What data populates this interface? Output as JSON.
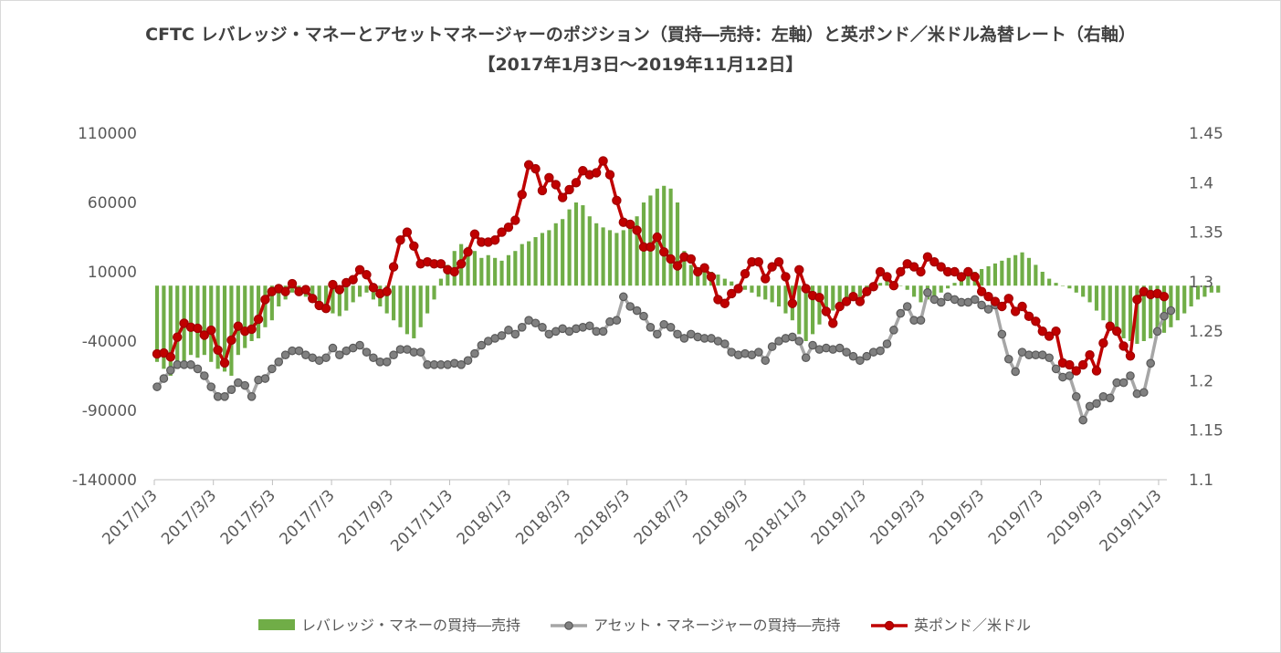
{
  "chart_data": {
    "type": "bar+line",
    "title": "CFTC レバレッジ・マネーとアセットマネージャーのポジション（買持―売持：左軸）と英ポンド／米ドル為替レート（右軸）",
    "subtitle": "【2017年1月3日～2019年11月12日】",
    "y_left": {
      "range": [
        -140000,
        110000
      ],
      "ticks": [
        "110000",
        "60000",
        "10000",
        "-40000",
        "-90000",
        "-140000"
      ]
    },
    "y_right": {
      "range": [
        1.1,
        1.45
      ],
      "ticks": [
        "1.45",
        "1.4",
        "1.35",
        "1.3",
        "1.25",
        "1.2",
        "1.15",
        "1.1"
      ]
    },
    "x_ticks": [
      "2017/1/3",
      "2017/3/3",
      "2017/5/3",
      "2017/7/3",
      "2017/9/3",
      "2017/11/3",
      "2018/1/3",
      "2018/3/3",
      "2018/5/3",
      "2018/7/3",
      "2018/9/3",
      "2018/11/3",
      "2019/1/3",
      "2019/3/3",
      "2019/5/3",
      "2019/7/3",
      "2019/9/3",
      "2019/11/3"
    ],
    "grid": false,
    "legend_position": "bottom",
    "series": [
      {
        "name": "レバレッジ・マネーの買持―売持",
        "type": "bar",
        "axis": "left",
        "color": "#70ad47",
        "values": [
          -55000,
          -60000,
          -65000,
          -60000,
          -55000,
          -50000,
          -52000,
          -50000,
          -55000,
          -60000,
          -62000,
          -65000,
          -50000,
          -45000,
          -40000,
          -38000,
          -30000,
          -25000,
          -15000,
          -10000,
          -5000,
          -5000,
          -8000,
          -10000,
          -12000,
          -15000,
          -20000,
          -22000,
          -18000,
          -12000,
          -8000,
          -5000,
          -10000,
          -15000,
          -20000,
          -25000,
          -30000,
          -35000,
          -38000,
          -30000,
          -20000,
          -10000,
          5000,
          15000,
          25000,
          30000,
          28000,
          25000,
          20000,
          22000,
          20000,
          18000,
          22000,
          25000,
          30000,
          32000,
          35000,
          38000,
          40000,
          45000,
          48000,
          55000,
          60000,
          58000,
          50000,
          45000,
          42000,
          40000,
          38000,
          40000,
          45000,
          50000,
          60000,
          65000,
          70000,
          72000,
          70000,
          60000,
          25000,
          15000,
          10000,
          12000,
          10000,
          8000,
          5000,
          3000,
          0,
          -3000,
          -5000,
          -8000,
          -10000,
          -12000,
          -15000,
          -20000,
          -25000,
          -35000,
          -40000,
          -35000,
          -28000,
          -22000,
          -18000,
          -15000,
          -12000,
          -10000,
          -8000,
          -5000,
          -3000,
          2000,
          5000,
          3000,
          0,
          -3000,
          -8000,
          -12000,
          -10000,
          -8000,
          -5000,
          -2000,
          2000,
          5000,
          8000,
          10000,
          12000,
          14000,
          16000,
          18000,
          20000,
          22000,
          24000,
          20000,
          15000,
          10000,
          5000,
          2000,
          0,
          -2000,
          -5000,
          -8000,
          -12000,
          -18000,
          -25000,
          -30000,
          -35000,
          -38000,
          -40000,
          -42000,
          -40000,
          -38000,
          -36000,
          -34000,
          -30000,
          -25000,
          -20000,
          -15000,
          -10000,
          -8000,
          -5000,
          -5000
        ]
      },
      {
        "name": "アセット・マネージャーの買持―売持",
        "type": "line",
        "axis": "left",
        "color": "#a6a6a6",
        "values": [
          -73000,
          -67000,
          -61000,
          -57000,
          -57000,
          -57000,
          -60000,
          -65000,
          -73000,
          -80000,
          -80000,
          -75000,
          -70000,
          -72000,
          -80000,
          -68000,
          -67000,
          -60000,
          -55000,
          -50000,
          -47000,
          -47000,
          -50000,
          -52000,
          -54000,
          -52000,
          -45000,
          -50000,
          -47000,
          -45000,
          -43000,
          -48000,
          -52000,
          -55000,
          -55000,
          -50000,
          -46000,
          -46000,
          -48000,
          -48000,
          -57000,
          -57000,
          -57000,
          -57000,
          -56000,
          -57000,
          -54000,
          -49000,
          -43000,
          -40000,
          -38000,
          -36000,
          -32000,
          -35000,
          -30000,
          -25000,
          -27000,
          -30000,
          -35000,
          -33000,
          -31000,
          -33000,
          -31000,
          -30000,
          -29000,
          -33000,
          -33000,
          -26000,
          -25000,
          -8000,
          -15000,
          -18000,
          -22000,
          -30000,
          -35000,
          -28000,
          -30000,
          -35000,
          -38000,
          -35000,
          -37000,
          -38000,
          -38000,
          -40000,
          -42000,
          -48000,
          -50000,
          -49000,
          -50000,
          -48000,
          -54000,
          -44000,
          -40000,
          -38000,
          -37000,
          -40000,
          -52000,
          -43000,
          -46000,
          -45000,
          -46000,
          -45000,
          -48000,
          -51000,
          -54000,
          -51000,
          -48000,
          -47000,
          -42000,
          -32000,
          -20000,
          -15000,
          -25000,
          -25000,
          -5000,
          -10000,
          -12000,
          -8000,
          -10000,
          -12000,
          -12000,
          -10000,
          -14000,
          -17000,
          -14000,
          -35000,
          -53000,
          -62000,
          -48000,
          -50000,
          -50000,
          -50000,
          -52000,
          -60000,
          -66000,
          -65000,
          -80000,
          -97000,
          -87000,
          -85000,
          -80000,
          -81000,
          -70000,
          -70000,
          -65000,
          -78000,
          -77000,
          -56000,
          -33000,
          -22000,
          -18000
        ]
      },
      {
        "name": "英ポンド／米ドル",
        "type": "line",
        "axis": "right",
        "color": "#c00000",
        "values": [
          1.227,
          1.228,
          1.224,
          1.244,
          1.258,
          1.254,
          1.253,
          1.246,
          1.251,
          1.231,
          1.218,
          1.241,
          1.255,
          1.25,
          1.252,
          1.262,
          1.282,
          1.29,
          1.293,
          1.29,
          1.298,
          1.29,
          1.292,
          1.283,
          1.276,
          1.273,
          1.297,
          1.292,
          1.299,
          1.302,
          1.312,
          1.307,
          1.294,
          1.288,
          1.29,
          1.315,
          1.342,
          1.35,
          1.336,
          1.318,
          1.32,
          1.318,
          1.318,
          1.312,
          1.31,
          1.318,
          1.33,
          1.348,
          1.34,
          1.34,
          1.342,
          1.35,
          1.355,
          1.362,
          1.388,
          1.418,
          1.414,
          1.392,
          1.405,
          1.398,
          1.385,
          1.393,
          1.4,
          1.412,
          1.408,
          1.41,
          1.422,
          1.408,
          1.382,
          1.36,
          1.358,
          1.352,
          1.335,
          1.335,
          1.345,
          1.33,
          1.323,
          1.316,
          1.325,
          1.323,
          1.31,
          1.314,
          1.305,
          1.282,
          1.278,
          1.288,
          1.293,
          1.308,
          1.32,
          1.32,
          1.303,
          1.315,
          1.32,
          1.305,
          1.278,
          1.312,
          1.293,
          1.286,
          1.284,
          1.27,
          1.258,
          1.275,
          1.28,
          1.285,
          1.28,
          1.29,
          1.295,
          1.31,
          1.305,
          1.296,
          1.31,
          1.318,
          1.315,
          1.31,
          1.325,
          1.32,
          1.315,
          1.31,
          1.31,
          1.305,
          1.31,
          1.305,
          1.29,
          1.285,
          1.28,
          1.275,
          1.283,
          1.27,
          1.275,
          1.265,
          1.26,
          1.25,
          1.245,
          1.25,
          1.218,
          1.216,
          1.21,
          1.216,
          1.226,
          1.21,
          1.238,
          1.255,
          1.25,
          1.235,
          1.225,
          1.282,
          1.29,
          1.287,
          1.288,
          1.285
        ]
      }
    ]
  }
}
